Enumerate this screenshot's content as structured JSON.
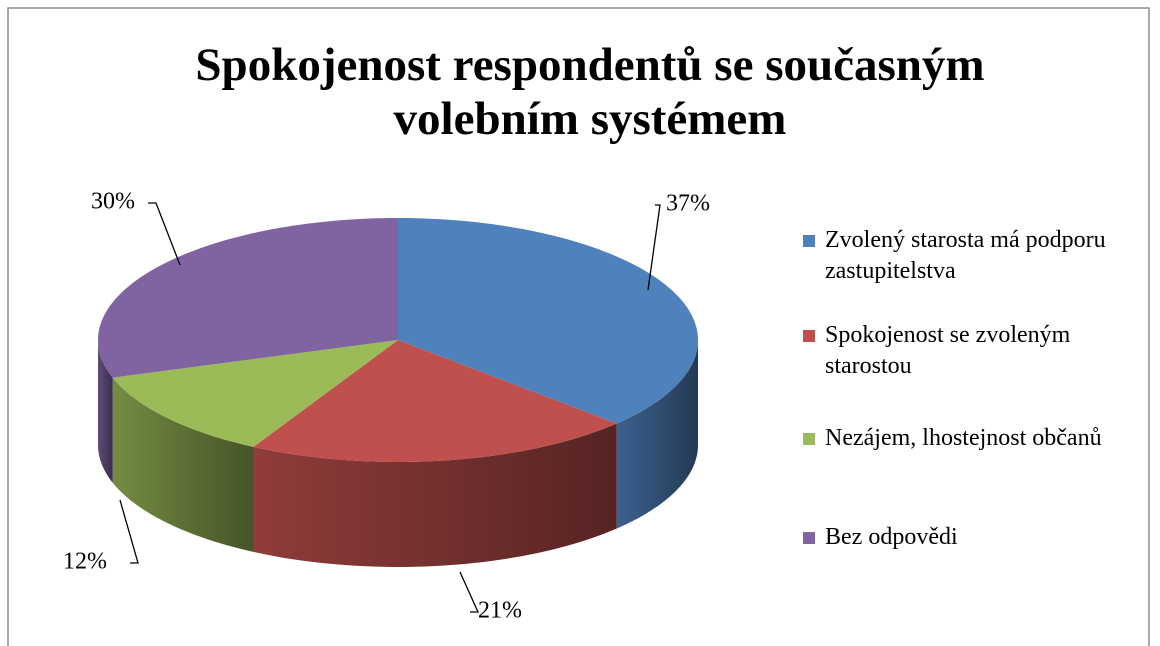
{
  "chart_data": {
    "type": "pie",
    "title": "Spokojenost respondentů se současným volebním systémem",
    "categories": [
      "Zvolený starosta má podporu zastupitelstva",
      "Spokojenost se zvoleným starostou",
      "Nezájem, lhostejnost občanů",
      "Bez odpovědi"
    ],
    "values": [
      37,
      21,
      12,
      30
    ],
    "value_labels": [
      "37%",
      "21%",
      "12%",
      "30%"
    ],
    "colors": [
      "#4f81bd",
      "#c0504d",
      "#9bbb59",
      "#8064a2"
    ],
    "legend": "right"
  }
}
